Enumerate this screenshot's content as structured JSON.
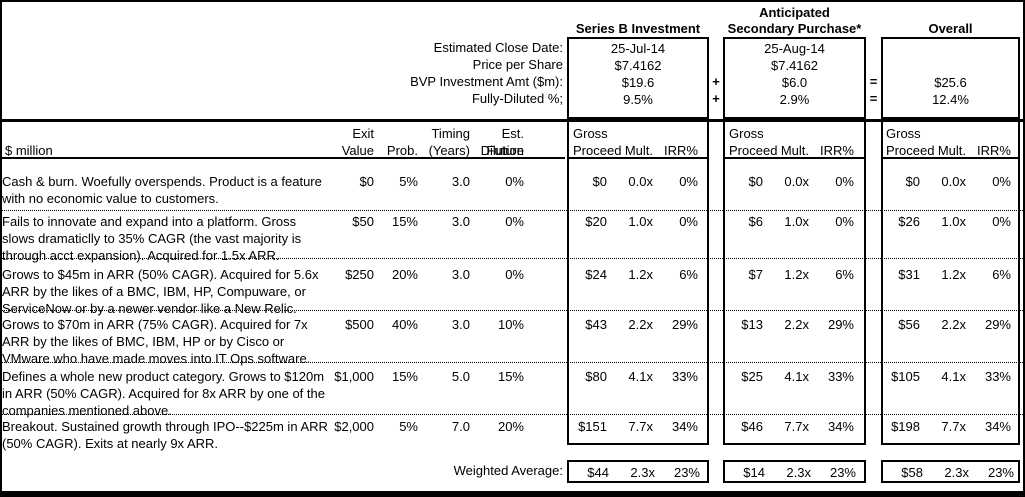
{
  "top": {
    "groups": [
      {
        "title1": "",
        "title2": "Series B Investment",
        "values": [
          "25-Jul-14",
          "$7.4162",
          "$19.6",
          "9.5%"
        ]
      },
      {
        "title1": "Anticipated",
        "title2": "Secondary Purchase*",
        "values": [
          "25-Aug-14",
          "$7.4162",
          "$6.0",
          "2.9%"
        ]
      },
      {
        "title1": "",
        "title2": "Overall",
        "values": [
          "",
          "",
          "$25.6",
          "12.4%"
        ]
      }
    ],
    "row_labels": [
      "Estimated Close Date:",
      "Price per Share",
      "BVP Investment Amt ($m):",
      "Fully-Diluted %;"
    ],
    "plus": "+",
    "equals": "="
  },
  "table": {
    "unit_label": "$ million",
    "col_headers": {
      "exit": [
        "Exit",
        "Value"
      ],
      "prob": [
        "",
        "Prob."
      ],
      "timing": [
        "Timing",
        "(Years)"
      ],
      "dilution": [
        "Est. Future",
        "Dilution"
      ],
      "gross": [
        "Gross",
        "Proceed"
      ],
      "mult": "Mult.",
      "irr": "IRR%"
    },
    "rows": [
      {
        "desc": "Cash & burn. Woefully overspends. Product is a feature with no economic value to customers.",
        "exit": "$0",
        "prob": "5%",
        "timing": "3.0",
        "dilution": "0%",
        "sb": [
          "$0",
          "0.0x",
          "0%"
        ],
        "sp": [
          "$0",
          "0.0x",
          "0%"
        ],
        "ov": [
          "$0",
          "0.0x",
          "0%"
        ]
      },
      {
        "desc": "Fails to innovate and expand into a platform. Gross slows dramaticlly to 35% CAGR (the vast majority is through acct expansion). Acquired for 1.5x ARR.",
        "exit": "$50",
        "prob": "15%",
        "timing": "3.0",
        "dilution": "0%",
        "sb": [
          "$20",
          "1.0x",
          "0%"
        ],
        "sp": [
          "$6",
          "1.0x",
          "0%"
        ],
        "ov": [
          "$26",
          "1.0x",
          "0%"
        ]
      },
      {
        "desc": "Grows to $45m in ARR (50% CAGR). Acquired for 5.6x ARR by the likes of a BMC, IBM, HP, Compuware, or ServiceNow or by a newer vendor like a New Relic.",
        "exit": "$250",
        "prob": "20%",
        "timing": "3.0",
        "dilution": "0%",
        "sb": [
          "$24",
          "1.2x",
          "6%"
        ],
        "sp": [
          "$7",
          "1.2x",
          "6%"
        ],
        "ov": [
          "$31",
          "1.2x",
          "6%"
        ]
      },
      {
        "desc": "Grows to $70m in ARR (75% CAGR). Acquired for 7x ARR by the likes of BMC, IBM, HP or by Cisco or VMware who have made moves into IT Ops software.",
        "exit": "$500",
        "prob": "40%",
        "timing": "3.0",
        "dilution": "10%",
        "sb": [
          "$43",
          "2.2x",
          "29%"
        ],
        "sp": [
          "$13",
          "2.2x",
          "29%"
        ],
        "ov": [
          "$56",
          "2.2x",
          "29%"
        ]
      },
      {
        "desc": "Defines a whole new product category. Grows to $120m in ARR (50% CAGR). Acquired for 8x ARR by one of the companies mentioned above.",
        "exit": "$1,000",
        "prob": "15%",
        "timing": "5.0",
        "dilution": "15%",
        "sb": [
          "$80",
          "4.1x",
          "33%"
        ],
        "sp": [
          "$25",
          "4.1x",
          "33%"
        ],
        "ov": [
          "$105",
          "4.1x",
          "33%"
        ]
      },
      {
        "desc": "Breakout. Sustained growth through IPO--$225m in ARR (50% CAGR). Exits at nearly 9x ARR.",
        "exit": "$2,000",
        "prob": "5%",
        "timing": "7.0",
        "dilution": "20%",
        "sb": [
          "$151",
          "7.7x",
          "34%"
        ],
        "sp": [
          "$46",
          "7.7x",
          "34%"
        ],
        "ov": [
          "$198",
          "7.7x",
          "34%"
        ]
      }
    ],
    "weighted": {
      "label": "Weighted Average:",
      "sb": [
        "$44",
        "2.3x",
        "23%"
      ],
      "sp": [
        "$14",
        "2.3x",
        "23%"
      ],
      "ov": [
        "$58",
        "2.3x",
        "23%"
      ]
    }
  }
}
